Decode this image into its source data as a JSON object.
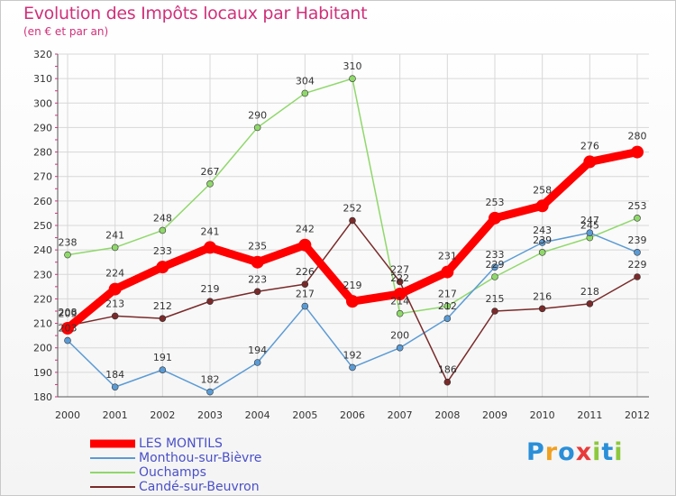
{
  "header": {
    "title": "Evolution des Impôts locaux par Habitant",
    "subtitle": "(en € et par an)"
  },
  "logo": {
    "text": "Proxiti"
  },
  "chart_data": {
    "type": "line",
    "title": "Evolution des Impôts locaux par Habitant",
    "subtitle": "(en € et par an)",
    "xlabel": "",
    "ylabel": "",
    "ylim": [
      180,
      320
    ],
    "yticks": [
      180,
      190,
      200,
      210,
      220,
      230,
      240,
      250,
      260,
      270,
      280,
      290,
      300,
      310,
      320
    ],
    "x": [
      "2000",
      "2001",
      "2002",
      "2003",
      "2004",
      "2005",
      "2006",
      "2007",
      "2008",
      "2009",
      "2010",
      "2011",
      "2012"
    ],
    "grid": true,
    "legend_position": "bottom-left",
    "series": [
      {
        "name": "LES MONTILS",
        "color": "#ff0000",
        "values": [
          208,
          224,
          233,
          241,
          235,
          242,
          219,
          222,
          231,
          253,
          258,
          276,
          280
        ]
      },
      {
        "name": "Monthou-sur-Bièvre",
        "color": "#5b9bd5",
        "values": [
          203,
          184,
          191,
          182,
          194,
          217,
          192,
          200,
          212,
          233,
          243,
          247,
          239
        ]
      },
      {
        "name": "Ouchamps",
        "color": "#8fd86a",
        "values": [
          238,
          241,
          248,
          267,
          290,
          304,
          310,
          214,
          217,
          229,
          239,
          245,
          253
        ]
      },
      {
        "name": "Candé-sur-Beuvron",
        "color": "#7a2a2a",
        "values": [
          209,
          213,
          212,
          219,
          223,
          226,
          252,
          227,
          186,
          215,
          216,
          218,
          229
        ]
      }
    ]
  }
}
